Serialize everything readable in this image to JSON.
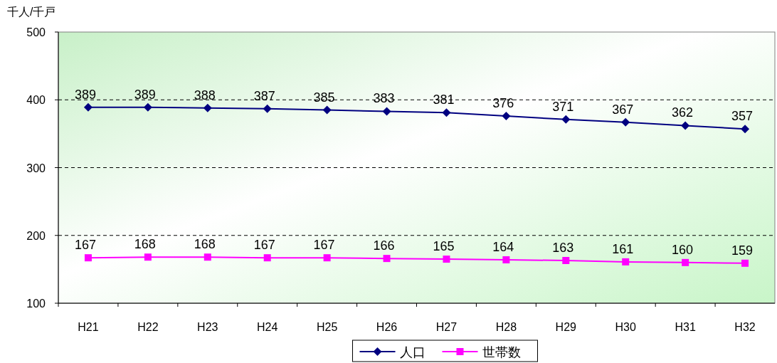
{
  "chart_data": {
    "type": "line",
    "ylabel": "千人/千戸",
    "categories": [
      "H21",
      "H22",
      "H23",
      "H24",
      "H25",
      "H26",
      "H27",
      "H28",
      "H29",
      "H30",
      "H31",
      "H32"
    ],
    "series": [
      {
        "name": "人口",
        "color": "#000080",
        "marker": "diamond",
        "values": [
          389,
          389,
          388,
          387,
          385,
          383,
          381,
          376,
          371,
          367,
          362,
          357
        ]
      },
      {
        "name": "世帯数",
        "color": "#ff00ff",
        "marker": "square",
        "values": [
          167,
          168,
          168,
          167,
          167,
          166,
          165,
          164,
          163,
          161,
          160,
          159
        ]
      }
    ],
    "ylim": [
      100,
      500
    ],
    "yticks": [
      100,
      200,
      300,
      400,
      500
    ],
    "grid": "y",
    "legend": "bottom",
    "data_labels": true
  }
}
